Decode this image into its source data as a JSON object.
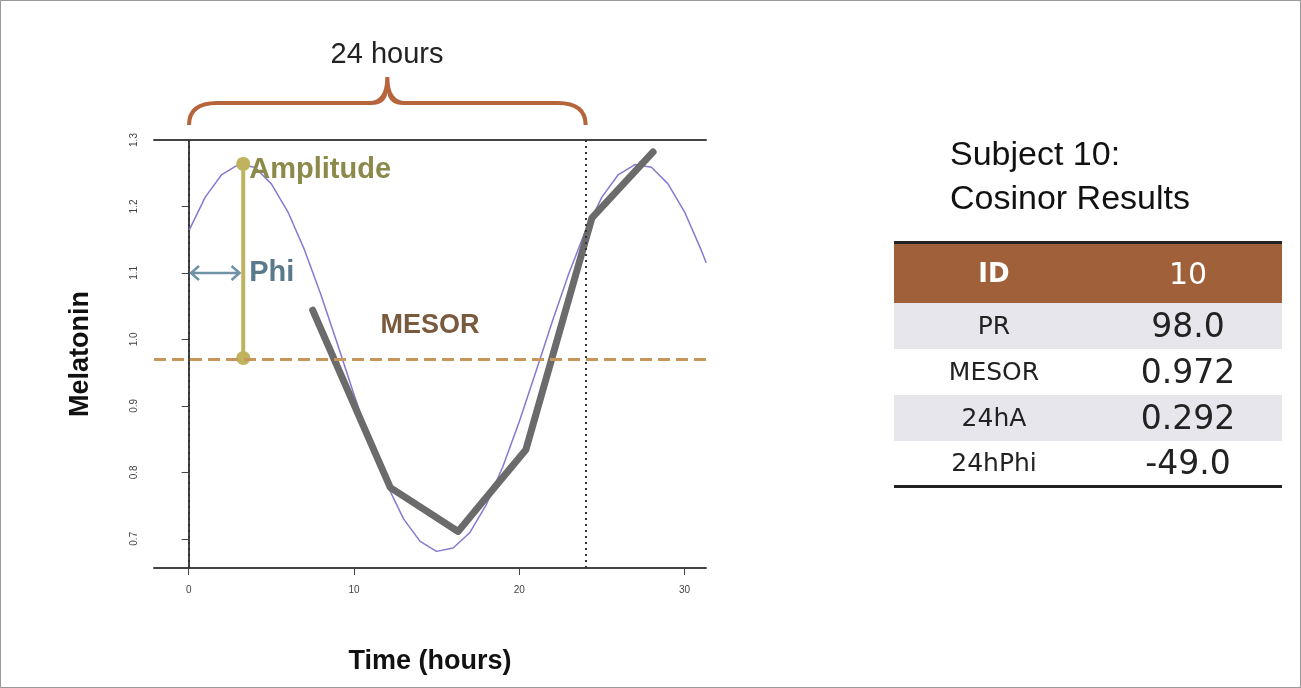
{
  "chart_data": [
    {
      "type": "line",
      "xlabel": "Time (hours)",
      "ylabel": "Melatonin",
      "xlim": [
        -2.1,
        31.3
      ],
      "ylim": [
        0.656,
        1.3
      ],
      "xticks": [
        0,
        10,
        20,
        30
      ],
      "yticks": [
        0.7,
        0.8,
        0.9,
        {
          "value": 1,
          "label": "1.0"
        },
        1.1,
        1.2,
        1.3
      ],
      "marker": "none",
      "series": [
        {
          "color": "#8878d0",
          "x": [
            0,
            1,
            2,
            3,
            4,
            5,
            6,
            7,
            8,
            9,
            10,
            11,
            12,
            13,
            14,
            15,
            16,
            17,
            18,
            19,
            20,
            21,
            22,
            23,
            24,
            25,
            26,
            27,
            28,
            29,
            30,
            31,
            31.3
          ],
          "values": [
            1.163,
            1.214,
            1.248,
            1.263,
            1.259,
            1.234,
            1.192,
            1.135,
            1.067,
            0.993,
            0.917,
            0.844,
            0.781,
            0.73,
            0.696,
            0.681,
            0.686,
            0.709,
            0.751,
            0.808,
            0.876,
            0.951,
            1.027,
            1.099,
            1.163,
            1.214,
            1.248,
            1.263,
            1.259,
            1.234,
            1.192,
            1.135,
            1.116
          ]
        },
        {
          "color": "#6b6b6b",
          "x": [
            7.5,
            12.2,
            16.3,
            20.4,
            24.4,
            28.1
          ],
          "values": [
            1.044,
            0.777,
            0.711,
            0.834,
            1.183,
            1.282
          ]
        },
        {
          "color": "#bfb35e",
          "marker": "circle",
          "x": [
            3.3,
            3.3
          ],
          "values": [
            0.972,
            1.264
          ]
        }
      ],
      "ref_lines": [
        {
          "axis": "y",
          "value": 0.972,
          "label": "MESOR",
          "color": "#c8955a",
          "line_style": "dashed"
        },
        {
          "axis": "x",
          "value": 0,
          "color": "#333333",
          "line_style": "dotted"
        },
        {
          "axis": "x",
          "value": 24,
          "color": "#333333",
          "line_style": "dotted"
        }
      ],
      "annotations": [
        "24 hours",
        {
          "text": "Amplitude",
          "x": 3.3,
          "y": 1.264
        },
        {
          "text": "Phi",
          "x": 3.3,
          "y": 1.1
        }
      ]
    },
    {
      "type": "other",
      "title": "Subject 10: Cosinor Results",
      "categories": [
        "ID",
        "PR",
        "MESOR",
        "24hA",
        "24hPhi"
      ],
      "value_labels": [
        "10",
        "98.0",
        "0.972",
        "0.292",
        "-49.0"
      ]
    }
  ]
}
